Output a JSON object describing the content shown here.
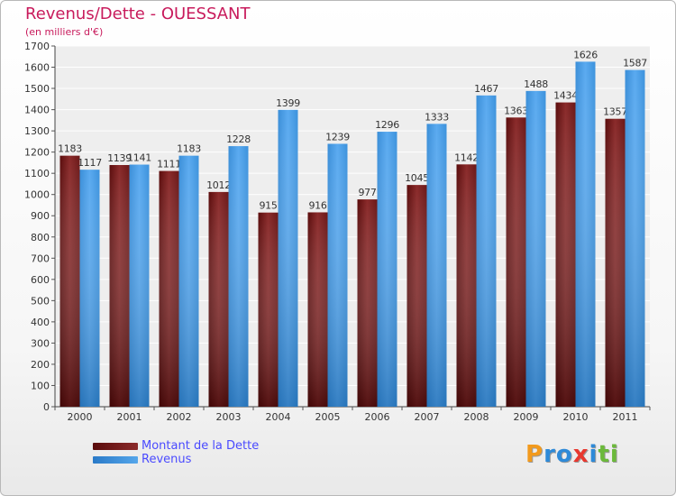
{
  "chart_data": {
    "type": "bar",
    "title": "Revenus/Dette - OUESSANT",
    "subtitle": "(en milliers d'€)",
    "categories": [
      "2000",
      "2001",
      "2002",
      "2003",
      "2004",
      "2005",
      "2006",
      "2007",
      "2008",
      "2009",
      "2010",
      "2011"
    ],
    "series": [
      {
        "name": "Montant de la Dette",
        "color": "#7a1f1f",
        "values": [
          1183,
          1139,
          1111,
          1012,
          915,
          916,
          977,
          1045,
          1142,
          1363,
          1434,
          1357
        ],
        "labels": [
          "1183",
          "1139",
          "1111",
          "1012",
          "915",
          "916",
          "977",
          "1045",
          "1142",
          "1363",
          "1434",
          "1357"
        ]
      },
      {
        "name": "Revenus",
        "color": "#3c92dc",
        "values": [
          1117,
          1141,
          1183,
          1228,
          1399,
          1239,
          1296,
          1333,
          1467,
          1488,
          1626,
          1587
        ],
        "labels": [
          "1117",
          "1141",
          "1183",
          "1228",
          "1399",
          "1239",
          "1296",
          "1333",
          "1467",
          "1488",
          "1626",
          "1587"
        ]
      }
    ],
    "ylim": [
      0,
      1700
    ],
    "yticks": [
      0,
      100,
      200,
      300,
      400,
      500,
      600,
      700,
      800,
      900,
      1000,
      1100,
      1200,
      1300,
      1400,
      1500,
      1600,
      1700
    ],
    "grid": true,
    "legend": "bottom-left"
  },
  "logo": {
    "text": "Proxiti",
    "letters": [
      "P",
      "r",
      "o",
      "x",
      "i",
      "t",
      "i"
    ],
    "colors": [
      "#f29a1d",
      "#2e8ad8",
      "#2e8ad8",
      "#e8382f",
      "#2e8ad8",
      "#6bb93a",
      "#6bb93a"
    ]
  }
}
